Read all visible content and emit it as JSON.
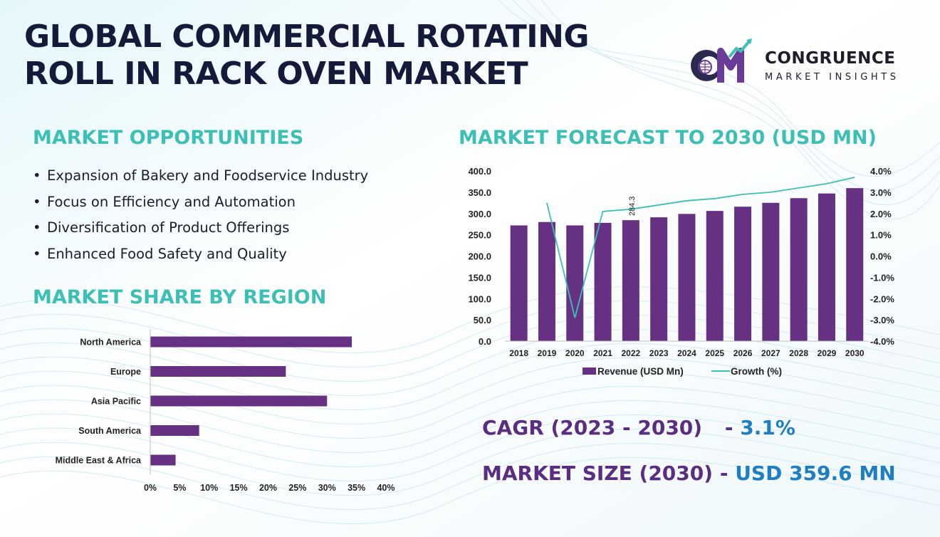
{
  "title": {
    "line1": "GLOBAL COMMERCIAL ROTATING",
    "line2": "ROLL IN RACK OVEN MARKET"
  },
  "logo": {
    "name": "CONGRUENCE",
    "subtitle": "MARKET INSIGHTS",
    "mark_letters": "CM"
  },
  "opportunities": {
    "heading": "MARKET OPPORTUNITIES",
    "bullet": "•",
    "items": [
      "Expansion of Bakery and Foodservice Industry",
      "Focus on Efficiency and Automation",
      "Diversification of Product Offerings",
      "Enhanced Food Safety and Quality"
    ]
  },
  "region": {
    "heading": "MARKET SHARE BY REGION"
  },
  "forecast": {
    "heading": "MARKET FORECAST TO 2030 (USD MN)"
  },
  "stats": {
    "cagr_label": "CAGR (2023 - 2030)",
    "cagr_dash": "-",
    "cagr_value": "3.1%",
    "size_label": "MARKET SIZE (2030)",
    "size_dash": "-",
    "size_value": "USD 359.6 MN"
  },
  "colors": {
    "title": "#141a3a",
    "heading": "#3dbfb5",
    "bar": "#663183",
    "line": "#3dbfb5",
    "stat_label": "#5b2d82",
    "stat_value": "#1f7ec1"
  },
  "chart_data": [
    {
      "type": "bar",
      "orientation": "horizontal",
      "categories": [
        "North America",
        "Europe",
        "Asia Pacific",
        "South America",
        "Middle East & Africa"
      ],
      "values": [
        34.2,
        23.0,
        30.0,
        8.3,
        4.3
      ],
      "xlim": [
        0,
        40
      ],
      "x_ticks": [
        "0%",
        "5%",
        "10%",
        "15%",
        "20%",
        "25%",
        "30%",
        "35%",
        "40%"
      ],
      "grid": false
    },
    {
      "type": "bar",
      "categories": [
        "2018",
        "2019",
        "2020",
        "2021",
        "2022",
        "2023",
        "2024",
        "2025",
        "2026",
        "2027",
        "2028",
        "2029",
        "2030"
      ],
      "series": [
        {
          "name": "Revenue (USD Mn)",
          "type": "bar",
          "axis": "left",
          "values": [
            272.0,
            280.0,
            272.0,
            278.0,
            284.3,
            291.0,
            299.0,
            306.0,
            316.0,
            325.0,
            336.0,
            347.0,
            359.6
          ]
        },
        {
          "name": "Growth (%)",
          "type": "line",
          "axis": "right",
          "values": [
            null,
            2.5,
            -2.9,
            2.1,
            2.2,
            2.4,
            2.6,
            2.7,
            2.9,
            3.0,
            3.2,
            3.4,
            3.7
          ]
        }
      ],
      "data_labels": [
        {
          "category": "2022",
          "text": "284.3"
        }
      ],
      "ylim_left": [
        0,
        400
      ],
      "y_ticks_left": [
        "0.0",
        "50.0",
        "100.0",
        "150.0",
        "200.0",
        "250.0",
        "300.0",
        "350.0",
        "400.0"
      ],
      "ylim_right": [
        -4,
        4
      ],
      "y_ticks_right": [
        "-4.0%",
        "-3.0%",
        "-2.0%",
        "-1.0%",
        "0.0%",
        "1.0%",
        "2.0%",
        "3.0%",
        "4.0%"
      ],
      "legend_position": "bottom",
      "grid": false
    }
  ]
}
